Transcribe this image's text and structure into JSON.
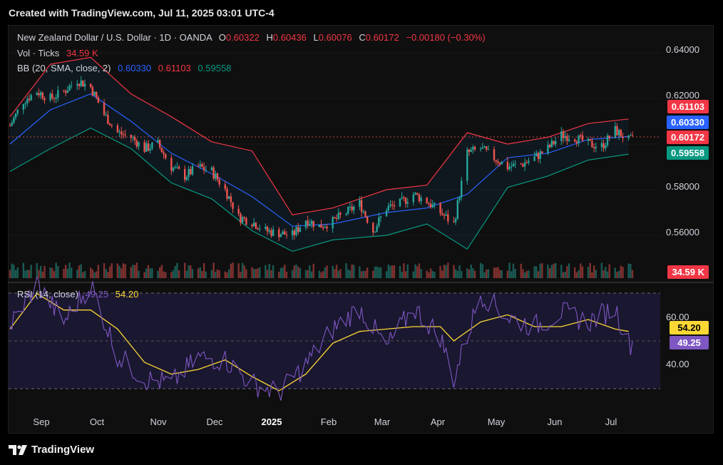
{
  "header": {
    "text": "Created with TradingView.com, Jul 11, 2025 03:01 UTC-4"
  },
  "footer": {
    "brand": "TradingView"
  },
  "legend": {
    "symbol": "New Zealand Dollar / U.S. Dollar · 1D · OANDA",
    "o_label": "O",
    "o_value": "0.60322",
    "h_label": "H",
    "h_value": "0.60436",
    "l_label": "L",
    "l_value": "0.60076",
    "c_label": "C",
    "c_value": "0.60172",
    "change": "−0.00180 (−0.30%)",
    "vol_label": "Vol · Ticks",
    "vol_value": "34.59 K",
    "bb_label": "BB (20, SMA, close, 2)",
    "bb_basis": "0.60330",
    "bb_upper": "0.61103",
    "bb_lower": "0.59558",
    "rsi_label": "RSI (14, close)",
    "rsi_value": "49.25",
    "rsi_ma": "54.20"
  },
  "price_tags": {
    "upper": "0.61103",
    "basis": "0.60330",
    "close": "0.60172",
    "lower": "0.59558",
    "volume": "34.59 K"
  },
  "rsi_tags": {
    "ma": "54.20",
    "rsi": "49.25"
  },
  "colors": {
    "up": "#26a69a",
    "down": "#ef5350",
    "bb_upper": "#f23645",
    "bb_basis": "#2962ff",
    "bb_lower": "#089981",
    "rsi": "#7e57c2",
    "rsi_ma": "#fdd835"
  },
  "chart_data": [
    {
      "type": "line",
      "subtype": "candlestick with Bollinger Bands and volume",
      "title": "New Zealand Dollar / U.S. Dollar · 1D · OANDA",
      "y_ticks": [
        "0.64000",
        "0.62000",
        "0.58000",
        "0.56000"
      ],
      "x_ticks": [
        "Sep",
        "Oct",
        "Nov",
        "Dec",
        "2025",
        "Feb",
        "Mar",
        "Apr",
        "May",
        "Jun",
        "Jul"
      ],
      "ylim": [
        0.5445,
        0.6515
      ],
      "close_series": [
        [
          "2024-08-19",
          0.608
        ],
        [
          "2024-08-26",
          0.619
        ],
        [
          "2024-09-02",
          0.623
        ],
        [
          "2024-09-09",
          0.62
        ],
        [
          "2024-09-16",
          0.623
        ],
        [
          "2024-09-23",
          0.628
        ],
        [
          "2024-09-30",
          0.625
        ],
        [
          "2024-10-07",
          0.613
        ],
        [
          "2024-10-14",
          0.605
        ],
        [
          "2024-10-21",
          0.603
        ],
        [
          "2024-10-28",
          0.598
        ],
        [
          "2024-11-04",
          0.6
        ],
        [
          "2024-11-11",
          0.59
        ],
        [
          "2024-11-18",
          0.586
        ],
        [
          "2024-11-25",
          0.59
        ],
        [
          "2024-12-02",
          0.588
        ],
        [
          "2024-12-09",
          0.58
        ],
        [
          "2024-12-16",
          0.568
        ],
        [
          "2024-12-23",
          0.566
        ],
        [
          "2024-12-30",
          0.562
        ],
        [
          "2025-01-06",
          0.561
        ],
        [
          "2025-01-13",
          0.56
        ],
        [
          "2025-01-20",
          0.567
        ],
        [
          "2025-01-27",
          0.564
        ],
        [
          "2025-02-03",
          0.566
        ],
        [
          "2025-02-10",
          0.57
        ],
        [
          "2025-02-17",
          0.574
        ],
        [
          "2025-02-24",
          0.562
        ],
        [
          "2025-03-03",
          0.572
        ],
        [
          "2025-03-10",
          0.574
        ],
        [
          "2025-03-17",
          0.578
        ],
        [
          "2025-03-24",
          0.575
        ],
        [
          "2025-03-31",
          0.57
        ],
        [
          "2025-04-07",
          0.565
        ],
        [
          "2025-04-14",
          0.596
        ],
        [
          "2025-04-21",
          0.598
        ],
        [
          "2025-04-28",
          0.594
        ],
        [
          "2025-05-05",
          0.59
        ],
        [
          "2025-05-12",
          0.591
        ],
        [
          "2025-05-19",
          0.594
        ],
        [
          "2025-05-26",
          0.598
        ],
        [
          "2025-06-02",
          0.604
        ],
        [
          "2025-06-09",
          0.603
        ],
        [
          "2025-06-16",
          0.6
        ],
        [
          "2025-06-23",
          0.599
        ],
        [
          "2025-06-30",
          0.606
        ],
        [
          "2025-07-07",
          0.6017
        ]
      ],
      "bb_upper": [
        [
          "2024-08-19",
          0.612
        ],
        [
          "2024-09-09",
          0.635
        ],
        [
          "2024-09-30",
          0.638
        ],
        [
          "2024-10-21",
          0.622
        ],
        [
          "2024-11-11",
          0.612
        ],
        [
          "2024-12-02",
          0.601
        ],
        [
          "2024-12-23",
          0.597
        ],
        [
          "2025-01-13",
          0.569
        ],
        [
          "2025-02-03",
          0.572
        ],
        [
          "2025-03-03",
          0.58
        ],
        [
          "2025-03-24",
          0.582
        ],
        [
          "2025-04-14",
          0.605
        ],
        [
          "2025-05-05",
          0.6
        ],
        [
          "2025-05-26",
          0.603
        ],
        [
          "2025-06-16",
          0.609
        ],
        [
          "2025-07-07",
          0.611
        ]
      ],
      "bb_basis": [
        [
          "2024-08-19",
          0.6
        ],
        [
          "2024-09-09",
          0.615
        ],
        [
          "2024-09-30",
          0.622
        ],
        [
          "2024-10-21",
          0.61
        ],
        [
          "2024-11-11",
          0.596
        ],
        [
          "2024-12-02",
          0.587
        ],
        [
          "2024-12-23",
          0.577
        ],
        [
          "2025-01-13",
          0.564
        ],
        [
          "2025-02-03",
          0.565
        ],
        [
          "2025-03-03",
          0.57
        ],
        [
          "2025-03-24",
          0.572
        ],
        [
          "2025-04-14",
          0.578
        ],
        [
          "2025-05-05",
          0.594
        ],
        [
          "2025-05-26",
          0.596
        ],
        [
          "2025-06-16",
          0.602
        ],
        [
          "2025-07-07",
          0.6033
        ]
      ],
      "bb_lower": [
        [
          "2024-08-19",
          0.588
        ],
        [
          "2024-09-09",
          0.598
        ],
        [
          "2024-09-30",
          0.607
        ],
        [
          "2024-10-21",
          0.598
        ],
        [
          "2024-11-11",
          0.583
        ],
        [
          "2024-12-02",
          0.576
        ],
        [
          "2024-12-23",
          0.562
        ],
        [
          "2025-01-13",
          0.553
        ],
        [
          "2025-02-03",
          0.558
        ],
        [
          "2025-03-03",
          0.56
        ],
        [
          "2025-03-24",
          0.565
        ],
        [
          "2025-04-14",
          0.554
        ],
        [
          "2025-05-05",
          0.581
        ],
        [
          "2025-05-26",
          0.586
        ],
        [
          "2025-06-16",
          0.593
        ],
        [
          "2025-07-07",
          0.5956
        ]
      ]
    },
    {
      "type": "line",
      "title": "RSI (14, close)",
      "y_ticks": [
        "60.00",
        "40.00"
      ],
      "ylim": [
        20,
        80
      ],
      "rsi": [
        [
          "2024-08-19",
          56
        ],
        [
          "2024-09-02",
          74
        ],
        [
          "2024-09-16",
          58
        ],
        [
          "2024-09-30",
          74
        ],
        [
          "2024-10-14",
          44
        ],
        [
          "2024-10-28",
          34
        ],
        [
          "2024-11-11",
          32
        ],
        [
          "2024-11-25",
          43
        ],
        [
          "2024-12-09",
          42
        ],
        [
          "2024-12-23",
          32
        ],
        [
          "2025-01-06",
          28
        ],
        [
          "2025-01-20",
          40
        ],
        [
          "2025-02-03",
          55
        ],
        [
          "2025-02-17",
          64
        ],
        [
          "2025-03-03",
          47
        ],
        [
          "2025-03-17",
          64
        ],
        [
          "2025-03-31",
          52
        ],
        [
          "2025-04-07",
          34
        ],
        [
          "2025-04-21",
          70
        ],
        [
          "2025-05-05",
          60
        ],
        [
          "2025-05-19",
          56
        ],
        [
          "2025-06-02",
          62
        ],
        [
          "2025-06-16",
          58
        ],
        [
          "2025-06-30",
          64
        ],
        [
          "2025-07-07",
          49
        ]
      ],
      "rsi_ma": [
        [
          "2024-08-19",
          55
        ],
        [
          "2024-09-02",
          70
        ],
        [
          "2024-09-16",
          63
        ],
        [
          "2024-09-30",
          63
        ],
        [
          "2024-10-14",
          55
        ],
        [
          "2024-10-28",
          41
        ],
        [
          "2024-11-11",
          36
        ],
        [
          "2024-11-25",
          38
        ],
        [
          "2024-12-09",
          42
        ],
        [
          "2024-12-23",
          35
        ],
        [
          "2025-01-06",
          29
        ],
        [
          "2025-01-20",
          36
        ],
        [
          "2025-02-03",
          49
        ],
        [
          "2025-02-17",
          54
        ],
        [
          "2025-03-03",
          55
        ],
        [
          "2025-03-17",
          56
        ],
        [
          "2025-03-31",
          56
        ],
        [
          "2025-04-07",
          50
        ],
        [
          "2025-04-21",
          58
        ],
        [
          "2025-05-05",
          61
        ],
        [
          "2025-05-19",
          56
        ],
        [
          "2025-06-02",
          56
        ],
        [
          "2025-06-16",
          59
        ],
        [
          "2025-06-30",
          55
        ],
        [
          "2025-07-07",
          54
        ]
      ]
    }
  ]
}
